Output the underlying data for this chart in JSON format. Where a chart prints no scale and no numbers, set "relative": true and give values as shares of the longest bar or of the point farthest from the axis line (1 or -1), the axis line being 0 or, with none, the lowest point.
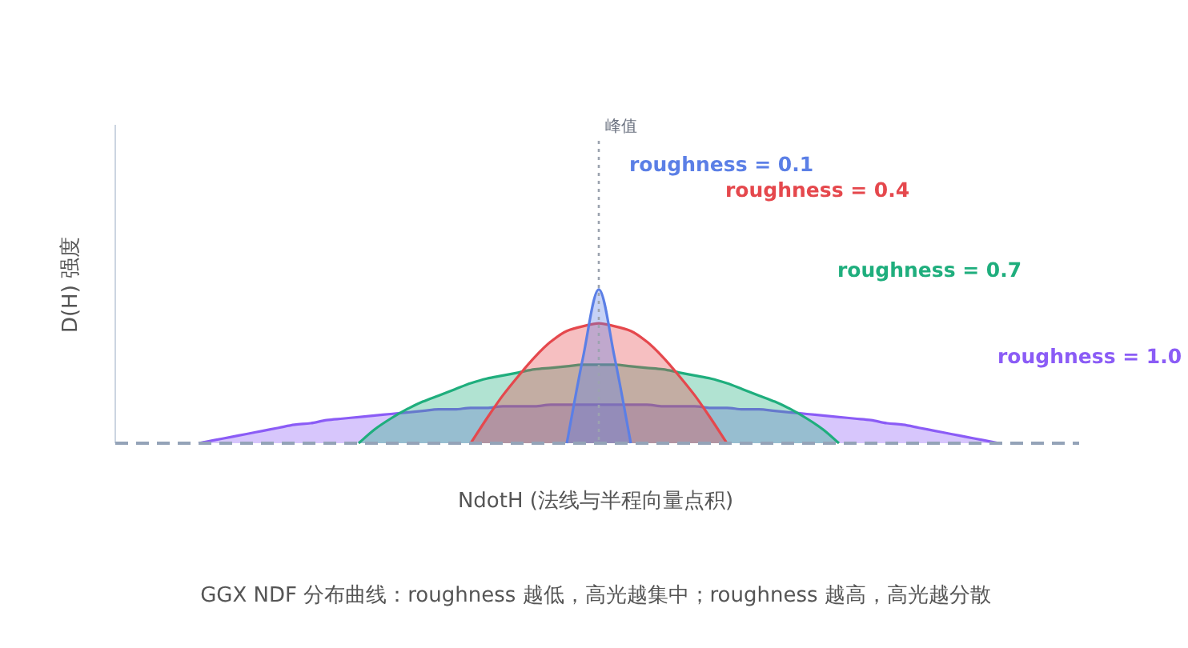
{
  "chart_data": {
    "type": "area",
    "relative": true,
    "xlabel": "NdotH (法线与半程向量点积)",
    "ylabel": "D(H) 强度",
    "categories": [
      null,
      null,
      null,
      null,
      null,
      null,
      null,
      null,
      null,
      null,
      null,
      null,
      null,
      null,
      null,
      null,
      null,
      null,
      null,
      null,
      null,
      null,
      null,
      null,
      null,
      null,
      null,
      null,
      null,
      null,
      null,
      null,
      null,
      null,
      null,
      null,
      null,
      null,
      null,
      null,
      null,
      null,
      null,
      null,
      null,
      null,
      null,
      null,
      null,
      null,
      null,
      null,
      null,
      null,
      null,
      null,
      null,
      null,
      null,
      null,
      null
    ],
    "series": [
      {
        "name": "roughness = 0.1",
        "color": "#5b7fe6",
        "values": [
          null,
          null,
          null,
          null,
          null,
          null,
          null,
          null,
          null,
          null,
          null,
          null,
          null,
          null,
          null,
          null,
          null,
          null,
          null,
          null,
          null,
          null,
          null,
          null,
          null,
          null,
          null,
          null,
          0,
          0.55,
          1,
          0.55,
          0,
          null,
          null,
          null,
          null,
          null,
          null,
          null,
          null,
          null,
          null,
          null,
          null,
          null,
          null,
          null,
          null,
          null,
          null,
          null,
          null,
          null,
          null,
          null,
          null,
          null,
          null,
          null,
          null
        ]
      },
      {
        "name": "roughness = 0.4",
        "color": "#e5484d",
        "values": [
          null,
          null,
          null,
          null,
          null,
          null,
          null,
          null,
          null,
          null,
          null,
          null,
          null,
          null,
          null,
          null,
          null,
          null,
          null,
          null,
          null,
          null,
          0,
          0.16,
          0.31,
          0.44,
          0.56,
          0.66,
          0.73,
          0.76,
          0.78,
          0.76,
          0.73,
          0.66,
          0.56,
          0.44,
          0.31,
          0.16,
          0,
          null,
          null,
          null,
          null,
          null,
          null,
          null,
          null,
          null,
          null,
          null,
          null,
          null,
          null,
          null,
          null,
          null,
          null,
          null,
          null,
          null,
          null
        ]
      },
      {
        "name": "roughness = 0.7",
        "color": "#1fae7d",
        "values": [
          null,
          null,
          null,
          null,
          null,
          null,
          null,
          null,
          null,
          null,
          null,
          null,
          null,
          null,
          null,
          0,
          0.09,
          0.16,
          0.22,
          0.27,
          0.31,
          0.35,
          0.39,
          0.42,
          0.44,
          0.46,
          0.48,
          0.49,
          0.5,
          0.51,
          0.51,
          0.51,
          0.5,
          0.49,
          0.48,
          0.46,
          0.44,
          0.42,
          0.39,
          0.35,
          0.31,
          0.27,
          0.22,
          0.16,
          0.09,
          0,
          null,
          null,
          null,
          null,
          null,
          null,
          null,
          null,
          null,
          null,
          null,
          null,
          null,
          null,
          null
        ]
      },
      {
        "name": "roughness = 1.0",
        "color": "#8b5cf6",
        "values": [
          null,
          null,
          null,
          null,
          null,
          0,
          0.02,
          0.04,
          0.06,
          0.08,
          0.1,
          0.12,
          0.13,
          0.15,
          0.16,
          0.17,
          0.18,
          0.19,
          0.2,
          0.21,
          0.22,
          0.22,
          0.23,
          0.23,
          0.24,
          0.24,
          0.24,
          0.25,
          0.25,
          0.25,
          0.25,
          0.25,
          0.25,
          0.25,
          0.24,
          0.24,
          0.24,
          0.23,
          0.23,
          0.22,
          0.22,
          0.21,
          0.2,
          0.19,
          0.18,
          0.17,
          0.16,
          0.15,
          0.13,
          0.12,
          0.1,
          0.08,
          0.06,
          0.04,
          0.02,
          0,
          null,
          null,
          null,
          null,
          null
        ]
      }
    ],
    "annotations": [
      "峰值",
      "GGX NDF 分布曲线：roughness 越低，高光越集中；roughness 越高，高光越分散"
    ]
  }
}
